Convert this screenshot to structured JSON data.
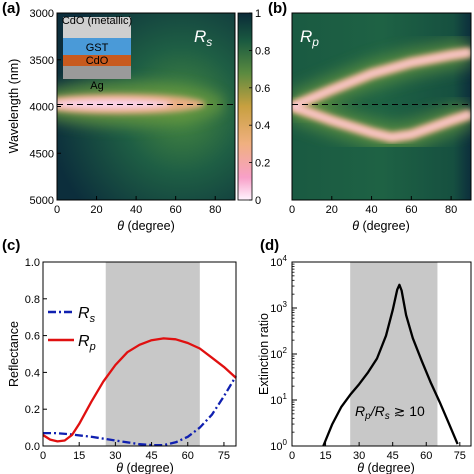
{
  "panel_labels": [
    "(a)",
    "(b)",
    "(c)",
    "(d)"
  ],
  "legend_text": {
    "rs_main": "R",
    "rs_sub": "s",
    "rp_main": "R",
    "rp_sub": "p"
  },
  "layer_stack": {
    "layers": [
      {
        "label": "CdO (metallic)",
        "color": "#cfcfcf"
      },
      {
        "label": "GST",
        "color": "#4a9ad8"
      },
      {
        "label": "CdO",
        "color": "#c85a1e"
      },
      {
        "label": "Ag",
        "color": "#9a9a9a"
      }
    ]
  },
  "annotation_d": {
    "main1": "R",
    "sub1": "p",
    "slash": "/",
    "main2": "R",
    "sub2": "s",
    "rest": " ≳ 10"
  },
  "chart_data": [
    {
      "id": "a",
      "type": "heatmap",
      "panel_label": "(a)",
      "series_label": "Rs",
      "xlabel": "θ (degree)",
      "ylabel": "Wavelength (nm)",
      "xlim": [
        0,
        90
      ],
      "ylim": [
        3000,
        5000
      ],
      "y_inverted": true,
      "x_ticks": [
        "0",
        "20",
        "40",
        "60",
        "80"
      ],
      "y_ticks": [
        "3000",
        "3500",
        "4000",
        "4500",
        "5000"
      ],
      "dashed_line_wavelength": 4000,
      "resonance": [
        {
          "theta": 0,
          "wavelength": 3995,
          "min_reflectance": 0.25
        },
        {
          "theta": 30,
          "wavelength": 3995,
          "min_reflectance": 0.28
        },
        {
          "theta": 60,
          "wavelength": 3990,
          "min_reflectance": 0.4
        },
        {
          "theta": 80,
          "wavelength": 3990,
          "min_reflectance": 0.7
        }
      ],
      "colorbar": {
        "ticks": [
          "0",
          "0.2",
          "0.4",
          "0.6",
          "0.8",
          "1"
        ],
        "range": [
          0,
          1
        ],
        "colors": [
          "#fff4ff",
          "#f8a0c8",
          "#f0b080",
          "#c8a040",
          "#5a8a40",
          "#1a5a40",
          "#0a2a38"
        ]
      }
    },
    {
      "id": "b",
      "type": "heatmap",
      "panel_label": "(b)",
      "series_label": "Rp",
      "xlabel": "θ (degree)",
      "xlim": [
        0,
        90
      ],
      "ylim": [
        3000,
        5000
      ],
      "y_inverted": true,
      "x_ticks": [
        "0",
        "20",
        "40",
        "60",
        "80"
      ],
      "dashed_line_wavelength": 4000,
      "upper_branch": [
        [
          0,
          4000
        ],
        [
          20,
          3820
        ],
        [
          40,
          3650
        ],
        [
          60,
          3530
        ],
        [
          80,
          3450
        ],
        [
          90,
          3420
        ]
      ],
      "lower_branch": [
        [
          0,
          4000
        ],
        [
          20,
          4150
        ],
        [
          40,
          4280
        ],
        [
          50,
          4330
        ],
        [
          60,
          4300
        ],
        [
          80,
          4150
        ],
        [
          90,
          4080
        ]
      ]
    },
    {
      "id": "c",
      "type": "line",
      "panel_label": "(c)",
      "xlabel": "θ (degree)",
      "ylabel": "Reflectance",
      "xlim": [
        0,
        80
      ],
      "ylim": [
        0,
        1.0
      ],
      "x_ticks": [
        "0",
        "15",
        "30",
        "45",
        "60",
        "75"
      ],
      "y_ticks": [
        "0.0",
        "0.2",
        "0.4",
        "0.6",
        "0.8",
        "1.0"
      ],
      "shaded_region": [
        26,
        65
      ],
      "legend": [
        "Rs",
        "Rp"
      ],
      "series": [
        {
          "name": "Rs",
          "color": "#1020b0",
          "style": "dash-dot",
          "x": [
            0,
            5,
            10,
            20,
            30,
            40,
            45,
            50,
            55,
            60,
            65,
            70,
            75,
            80
          ],
          "y": [
            0.07,
            0.07,
            0.065,
            0.05,
            0.03,
            0.01,
            0.005,
            0.005,
            0.02,
            0.05,
            0.1,
            0.17,
            0.27,
            0.38
          ]
        },
        {
          "name": "Rp",
          "color": "#e01010",
          "style": "solid",
          "x": [
            0,
            3,
            6,
            9,
            12,
            15,
            20,
            25,
            30,
            35,
            40,
            45,
            50,
            55,
            60,
            65,
            70,
            75,
            80
          ],
          "y": [
            0.06,
            0.035,
            0.025,
            0.03,
            0.06,
            0.12,
            0.24,
            0.35,
            0.44,
            0.51,
            0.55,
            0.575,
            0.585,
            0.58,
            0.56,
            0.53,
            0.48,
            0.43,
            0.37
          ]
        }
      ]
    },
    {
      "id": "d",
      "type": "line",
      "panel_label": "(d)",
      "xlabel": "θ (degree)",
      "ylabel": "Extinction ratio",
      "xlim": [
        0,
        80
      ],
      "ylim": [
        1,
        10000
      ],
      "y_scale": "log",
      "x_ticks": [
        "0",
        "15",
        "30",
        "45",
        "60",
        "75"
      ],
      "y_ticks": [
        {
          "base": "10",
          "exp": "0"
        },
        {
          "base": "10",
          "exp": "1"
        },
        {
          "base": "10",
          "exp": "2"
        },
        {
          "base": "10",
          "exp": "3"
        },
        {
          "base": "10",
          "exp": "4"
        }
      ],
      "shaded_region": [
        26,
        65
      ],
      "series": [
        {
          "name": "Rp/Rs",
          "color": "#000000",
          "x": [
            14,
            18,
            22,
            26,
            30,
            34,
            38,
            42,
            45,
            47,
            48,
            49,
            51,
            54,
            58,
            62,
            66,
            70,
            74
          ],
          "y": [
            1.0,
            3.0,
            7.0,
            13,
            22,
            40,
            80,
            250,
            900,
            2500,
            3200,
            2400,
            700,
            220,
            70,
            24,
            9,
            3.2,
            1.1
          ]
        }
      ]
    }
  ]
}
